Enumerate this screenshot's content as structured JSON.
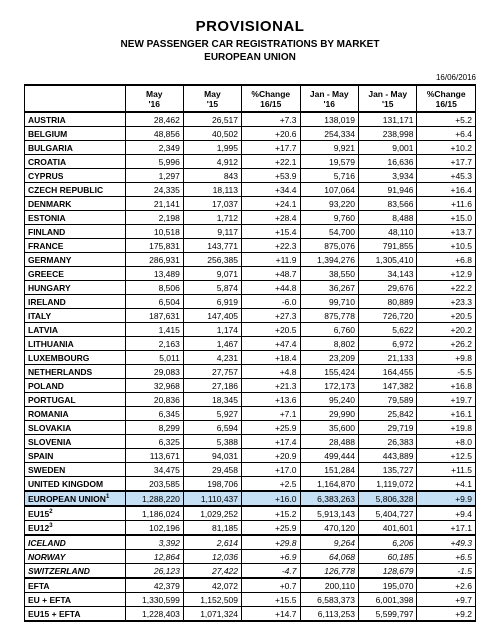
{
  "title": "PROVISIONAL",
  "subtitle": "NEW PASSENGER CAR REGISTRATIONS BY MARKET",
  "subtitle2": "EUROPEAN UNION",
  "date": "16/06/2016",
  "columns": [
    "",
    "May\n'16",
    "May\n'15",
    "%Change\n16/15",
    "Jan - May\n'16",
    "Jan - May\n'15",
    "%Change\n16/15"
  ],
  "rows": [
    {
      "label": "AUSTRIA",
      "v": [
        "28,462",
        "26,517",
        "+7.3",
        "138,019",
        "131,171",
        "+5.2"
      ]
    },
    {
      "label": "BELGIUM",
      "v": [
        "48,856",
        "40,502",
        "+20.6",
        "254,334",
        "238,998",
        "+6.4"
      ]
    },
    {
      "label": "BULGARIA",
      "v": [
        "2,349",
        "1,995",
        "+17.7",
        "9,921",
        "9,001",
        "+10.2"
      ]
    },
    {
      "label": "CROATIA",
      "v": [
        "5,996",
        "4,912",
        "+22.1",
        "19,579",
        "16,636",
        "+17.7"
      ]
    },
    {
      "label": "CYPRUS",
      "v": [
        "1,297",
        "843",
        "+53.9",
        "5,716",
        "3,934",
        "+45.3"
      ]
    },
    {
      "label": "CZECH REPUBLIC",
      "v": [
        "24,335",
        "18,113",
        "+34.4",
        "107,064",
        "91,946",
        "+16.4"
      ]
    },
    {
      "label": "DENMARK",
      "v": [
        "21,141",
        "17,037",
        "+24.1",
        "93,220",
        "83,566",
        "+11.6"
      ]
    },
    {
      "label": "ESTONIA",
      "v": [
        "2,198",
        "1,712",
        "+28.4",
        "9,760",
        "8,488",
        "+15.0"
      ]
    },
    {
      "label": "FINLAND",
      "v": [
        "10,518",
        "9,117",
        "+15.4",
        "54,700",
        "48,110",
        "+13.7"
      ]
    },
    {
      "label": "FRANCE",
      "v": [
        "175,831",
        "143,771",
        "+22.3",
        "875,076",
        "791,855",
        "+10.5"
      ]
    },
    {
      "label": "GERMANY",
      "v": [
        "286,931",
        "256,385",
        "+11.9",
        "1,394,276",
        "1,305,410",
        "+6.8"
      ]
    },
    {
      "label": "GREECE",
      "v": [
        "13,489",
        "9,071",
        "+48.7",
        "38,550",
        "34,143",
        "+12.9"
      ]
    },
    {
      "label": "HUNGARY",
      "v": [
        "8,506",
        "5,874",
        "+44.8",
        "36,267",
        "29,676",
        "+22.2"
      ]
    },
    {
      "label": "IRELAND",
      "v": [
        "6,504",
        "6,919",
        "-6.0",
        "99,710",
        "80,889",
        "+23.3"
      ]
    },
    {
      "label": "ITALY",
      "v": [
        "187,631",
        "147,405",
        "+27.3",
        "875,778",
        "726,720",
        "+20.5"
      ]
    },
    {
      "label": "LATVIA",
      "v": [
        "1,415",
        "1,174",
        "+20.5",
        "6,760",
        "5,622",
        "+20.2"
      ]
    },
    {
      "label": "LITHUANIA",
      "v": [
        "2,163",
        "1,467",
        "+47.4",
        "8,802",
        "6,972",
        "+26.2"
      ]
    },
    {
      "label": "LUXEMBOURG",
      "v": [
        "5,011",
        "4,231",
        "+18.4",
        "23,209",
        "21,133",
        "+9.8"
      ]
    },
    {
      "label": "NETHERLANDS",
      "v": [
        "29,083",
        "27,757",
        "+4.8",
        "155,424",
        "164,455",
        "-5.5"
      ]
    },
    {
      "label": "POLAND",
      "v": [
        "32,968",
        "27,186",
        "+21.3",
        "172,173",
        "147,382",
        "+16.8"
      ]
    },
    {
      "label": "PORTUGAL",
      "v": [
        "20,836",
        "18,345",
        "+13.6",
        "95,240",
        "79,589",
        "+19.7"
      ]
    },
    {
      "label": "ROMANIA",
      "v": [
        "6,345",
        "5,927",
        "+7.1",
        "29,990",
        "25,842",
        "+16.1"
      ]
    },
    {
      "label": "SLOVAKIA",
      "v": [
        "8,299",
        "6,594",
        "+25.9",
        "35,600",
        "29,719",
        "+19.8"
      ]
    },
    {
      "label": "SLOVENIA",
      "v": [
        "6,325",
        "5,388",
        "+17.4",
        "28,488",
        "26,383",
        "+8.0"
      ]
    },
    {
      "label": "SPAIN",
      "v": [
        "113,671",
        "94,031",
        "+20.9",
        "499,444",
        "443,889",
        "+12.5"
      ]
    },
    {
      "label": "SWEDEN",
      "v": [
        "34,475",
        "29,458",
        "+17.0",
        "151,284",
        "135,727",
        "+11.5"
      ]
    },
    {
      "label": "UNITED KINGDOM",
      "v": [
        "203,585",
        "198,706",
        "+2.5",
        "1,164,870",
        "1,119,072",
        "+4.1"
      ]
    }
  ],
  "highlight": {
    "label": "EUROPEAN UNION",
    "sup": "1",
    "v": [
      "1,288,220",
      "1,110,437",
      "+16.0",
      "6,383,263",
      "5,806,328",
      "+9.9"
    ]
  },
  "sub_rows": [
    {
      "label": "EU15",
      "sup": "2",
      "v": [
        "1,186,024",
        "1,029,252",
        "+15.2",
        "5,913,143",
        "5,404,727",
        "+9.4"
      ]
    },
    {
      "label": "EU12",
      "sup": "3",
      "v": [
        "102,196",
        "81,185",
        "+25.9",
        "470,120",
        "401,601",
        "+17.1"
      ]
    }
  ],
  "italic_rows": [
    {
      "label": "ICELAND",
      "v": [
        "3,392",
        "2,614",
        "+29.8",
        "9,264",
        "6,206",
        "+49.3"
      ]
    },
    {
      "label": "NORWAY",
      "v": [
        "12,864",
        "12,036",
        "+6.9",
        "64,068",
        "60,185",
        "+6.5"
      ]
    },
    {
      "label": "SWITZERLAND",
      "v": [
        "26,123",
        "27,422",
        "-4.7",
        "126,778",
        "128,679",
        "-1.5"
      ]
    }
  ],
  "footer_rows": [
    {
      "label": "EFTA",
      "v": [
        "42,379",
        "42,072",
        "+0.7",
        "200,110",
        "195,070",
        "+2.6"
      ]
    },
    {
      "label": "EU + EFTA",
      "v": [
        "1,330,599",
        "1,152,509",
        "+15.5",
        "6,583,373",
        "6,001,398",
        "+9.7"
      ]
    },
    {
      "label": "EU15 + EFTA",
      "v": [
        "1,228,403",
        "1,071,324",
        "+14.7",
        "6,113,253",
        "5,599,797",
        "+9.2"
      ]
    }
  ]
}
